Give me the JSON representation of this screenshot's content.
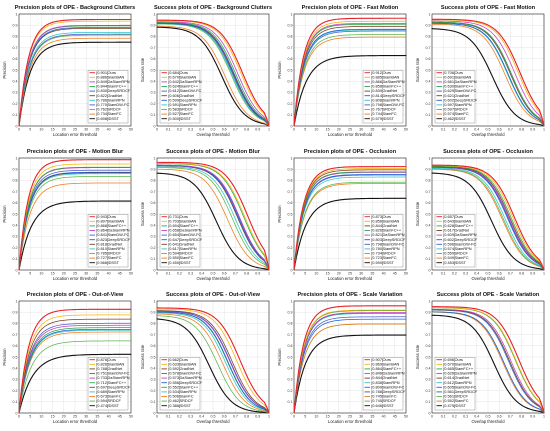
{
  "colors": {
    "Ours": "#e8202a",
    "SiamBAN": "#f7b500",
    "DaSiamRPN": "#c53fc1",
    "SiamFC++": "#28a84a",
    "DeepSRDCF": "#1e5fd6",
    "GradNet": "#7a3e1e",
    "SiamRPN": "#2ec4c9",
    "SRDCF": "#58b848",
    "SiamDW-FC": "#4a5bc8",
    "SiamFC": "#f07a1c",
    "fDSST": "#111111",
    "CFNet": "#8a8a8a"
  },
  "chart_data": [
    {
      "type": "line",
      "title": "Precision plots of OPE - Background Clutters",
      "xlabel": "Location error threshold",
      "ylabel": "Precision",
      "xlim": [
        0,
        50
      ],
      "ylim": [
        0,
        1
      ],
      "xticks": [
        "0",
        "5",
        "10",
        "15",
        "20",
        "25",
        "30",
        "35",
        "40",
        "45",
        "50"
      ],
      "yticks": [
        "0",
        "0.1",
        "0.2",
        "0.3",
        "0.4",
        "0.5",
        "0.6",
        "0.7",
        "0.8",
        "0.9",
        "1"
      ],
      "kind": "precision",
      "legend": "bottom-right",
      "series": [
        {
          "name": "Ours",
          "score": "[0.901]"
        },
        {
          "name": "SiamBAN",
          "score": "[0.886]"
        },
        {
          "name": "DaSiamRPN",
          "score": "[0.849]"
        },
        {
          "name": "SiamFC++",
          "score": "[0.844]"
        },
        {
          "name": "DeepSRDCF",
          "score": "[0.830]"
        },
        {
          "name": "GradNet",
          "score": "[0.822]"
        },
        {
          "name": "SiamRPN",
          "score": "[0.786]"
        },
        {
          "name": "SiamDW-FC",
          "score": "[0.770]"
        },
        {
          "name": "SRDCF",
          "score": "[0.762]"
        },
        {
          "name": "SiamFC",
          "score": "[0.734]"
        },
        {
          "name": "fDSST",
          "score": "[0.698]"
        }
      ]
    },
    {
      "type": "line",
      "title": "Success plots of OPE - Background Clutters",
      "xlabel": "Overlap threshold",
      "ylabel": "Success rate",
      "xlim": [
        0,
        1
      ],
      "ylim": [
        0,
        1
      ],
      "xticks": [
        "0",
        "0.1",
        "0.2",
        "0.3",
        "0.4",
        "0.5",
        "0.6",
        "0.7",
        "0.8",
        "0.9",
        "1"
      ],
      "yticks": [
        "0",
        "0.1",
        "0.2",
        "0.3",
        "0.4",
        "0.5",
        "0.6",
        "0.7",
        "0.8",
        "0.9",
        "1"
      ],
      "kind": "success",
      "legend": "bottom-left",
      "series": [
        {
          "name": "Ours",
          "score": "[0.684]"
        },
        {
          "name": "SiamBAN",
          "score": "[0.670]"
        },
        {
          "name": "DaSiamRPN",
          "score": "[0.642]"
        },
        {
          "name": "SiamFC++",
          "score": "[0.624]"
        },
        {
          "name": "SiamDW-FC",
          "score": "[0.612]"
        },
        {
          "name": "GradNet",
          "score": "[0.606]"
        },
        {
          "name": "DeepSRDCF",
          "score": "[0.599]"
        },
        {
          "name": "SiamRPN",
          "score": "[0.591]"
        },
        {
          "name": "SRDCF",
          "score": "[0.583]"
        },
        {
          "name": "SiamFC",
          "score": "[0.527]"
        },
        {
          "name": "fDSST",
          "score": "[0.500]"
        }
      ]
    },
    {
      "type": "line",
      "title": "Precision plots of OPE - Fast Motion",
      "xlabel": "Location error threshold",
      "ylabel": "Precision",
      "xlim": [
        0,
        50
      ],
      "ylim": [
        0,
        1
      ],
      "xticks": [
        "0",
        "5",
        "10",
        "15",
        "20",
        "25",
        "30",
        "35",
        "40",
        "45",
        "50"
      ],
      "yticks": [
        "0",
        "0.1",
        "0.2",
        "0.3",
        "0.4",
        "0.5",
        "0.6",
        "0.7",
        "0.8",
        "0.9",
        "1"
      ],
      "kind": "precision",
      "legend": "bottom-right",
      "series": [
        {
          "name": "Ours",
          "score": "[0.912]"
        },
        {
          "name": "SiamBAN",
          "score": "[0.885]"
        },
        {
          "name": "DaSiamRPN",
          "score": "[0.866]"
        },
        {
          "name": "SiamFC++",
          "score": "[0.858]"
        },
        {
          "name": "GradNet",
          "score": "[0.839]"
        },
        {
          "name": "DeepSRDCF",
          "score": "[0.814]"
        },
        {
          "name": "SiamRPN",
          "score": "[0.808]"
        },
        {
          "name": "SiamDW-FC",
          "score": "[0.798]"
        },
        {
          "name": "SRDCF",
          "score": "[0.767]"
        },
        {
          "name": "SiamFC",
          "score": "[0.744]"
        },
        {
          "name": "fDSST",
          "score": "[0.579]"
        }
      ]
    },
    {
      "type": "line",
      "title": "Success plots of OPE - Fast Motion",
      "xlabel": "Overlap threshold",
      "ylabel": "Success rate",
      "xlim": [
        0,
        1
      ],
      "ylim": [
        0,
        1
      ],
      "xticks": [
        "0",
        "0.1",
        "0.2",
        "0.3",
        "0.4",
        "0.5",
        "0.6",
        "0.7",
        "0.8",
        "0.9",
        "1"
      ],
      "yticks": [
        "0",
        "0.1",
        "0.2",
        "0.3",
        "0.4",
        "0.5",
        "0.6",
        "0.7",
        "0.8",
        "0.9",
        "1"
      ],
      "kind": "success",
      "legend": "bottom-left",
      "series": [
        {
          "name": "Ours",
          "score": "[0.706]"
        },
        {
          "name": "SiamBAN",
          "score": "[0.691]"
        },
        {
          "name": "DaSiamRPN",
          "score": "[0.661]"
        },
        {
          "name": "SiamFC++",
          "score": "[0.630]"
        },
        {
          "name": "SiamDW-FC",
          "score": "[0.629]"
        },
        {
          "name": "GradNet",
          "score": "[0.621]"
        },
        {
          "name": "DeepSRDCF",
          "score": "[0.602]"
        },
        {
          "name": "SiamRPN",
          "score": "[0.597]"
        },
        {
          "name": "SRDCF",
          "score": "[0.597]"
        },
        {
          "name": "SiamFC",
          "score": "[0.574]"
        },
        {
          "name": "fDSST",
          "score": "[0.462]"
        }
      ]
    },
    {
      "type": "line",
      "title": "Precision plots of OPE - Motion Blur",
      "xlabel": "Location error threshold",
      "ylabel": "Precision",
      "xlim": [
        0,
        50
      ],
      "ylim": [
        0,
        1
      ],
      "xticks": [
        "0",
        "5",
        "10",
        "15",
        "20",
        "25",
        "30",
        "35",
        "40",
        "45",
        "50"
      ],
      "yticks": [
        "0",
        "0.1",
        "0.2",
        "0.3",
        "0.4",
        "0.5",
        "0.6",
        "0.7",
        "0.8",
        "0.9",
        "1"
      ],
      "kind": "precision",
      "legend": "bottom-right",
      "series": [
        {
          "name": "Ours",
          "score": "[0.943]"
        },
        {
          "name": "SiamBAN",
          "score": "[0.897]"
        },
        {
          "name": "SiamFC++",
          "score": "[0.868]"
        },
        {
          "name": "DaSiamRPN",
          "score": "[0.864]"
        },
        {
          "name": "SiamDW-FC",
          "score": "[0.841]"
        },
        {
          "name": "DeepSRDCF",
          "score": "[0.823]"
        },
        {
          "name": "GradNet",
          "score": "[0.818]"
        },
        {
          "name": "SiamRPN",
          "score": "[0.810]"
        },
        {
          "name": "SRDCF",
          "score": "[0.785]"
        },
        {
          "name": "SiamFC",
          "score": "[0.727]"
        },
        {
          "name": "fDSST",
          "score": "[0.566]"
        }
      ]
    },
    {
      "type": "line",
      "title": "Success plots of OPE - Motion Blur",
      "xlabel": "Overlap threshold",
      "ylabel": "Success rate",
      "xlim": [
        0,
        1
      ],
      "ylim": [
        0,
        1
      ],
      "xticks": [
        "0",
        "0.1",
        "0.2",
        "0.3",
        "0.4",
        "0.5",
        "0.6",
        "0.7",
        "0.8",
        "0.9",
        "1"
      ],
      "yticks": [
        "0",
        "0.1",
        "0.2",
        "0.3",
        "0.4",
        "0.5",
        "0.6",
        "0.7",
        "0.8",
        "0.9",
        "1"
      ],
      "kind": "success",
      "legend": "bottom-left",
      "series": [
        {
          "name": "Ours",
          "score": "[0.731]"
        },
        {
          "name": "SiamBAN",
          "score": "[0.703]"
        },
        {
          "name": "SiamFC++",
          "score": "[0.694]"
        },
        {
          "name": "DaSiamRPN",
          "score": "[0.658]"
        },
        {
          "name": "SiamDW-FC",
          "score": "[0.654]"
        },
        {
          "name": "DeepSRDCF",
          "score": "[0.647]"
        },
        {
          "name": "GradNet",
          "score": "[0.641]"
        },
        {
          "name": "SiamRPN",
          "score": "[0.617]"
        },
        {
          "name": "SRDCF",
          "score": "[0.594]"
        },
        {
          "name": "SiamFC",
          "score": "[0.550]"
        },
        {
          "name": "fDSST",
          "score": "[0.450]"
        }
      ]
    },
    {
      "type": "line",
      "title": "Precision plots of OPE - Occlusion",
      "xlabel": "Location error threshold",
      "ylabel": "Precision",
      "xlim": [
        0,
        50
      ],
      "ylim": [
        0,
        1
      ],
      "xticks": [
        "0",
        "5",
        "10",
        "15",
        "20",
        "25",
        "30",
        "35",
        "40",
        "45",
        "50"
      ],
      "yticks": [
        "0",
        "0.1",
        "0.2",
        "0.3",
        "0.4",
        "0.5",
        "0.6",
        "0.7",
        "0.8",
        "0.9",
        "1"
      ],
      "kind": "precision",
      "legend": "bottom-right",
      "series": [
        {
          "name": "Ours",
          "score": "[0.873]"
        },
        {
          "name": "SiamBAN",
          "score": "[0.856]"
        },
        {
          "name": "GradNet",
          "score": "[0.844]"
        },
        {
          "name": "SiamFC++",
          "score": "[0.826]"
        },
        {
          "name": "DaSiamRPN",
          "score": "[0.821]"
        },
        {
          "name": "DeepSRDCF",
          "score": "[0.803]"
        },
        {
          "name": "SiamDW-FC",
          "score": "[0.798]"
        },
        {
          "name": "SiamRPN",
          "score": "[0.780]"
        },
        {
          "name": "SRDCF",
          "score": "[0.734]"
        },
        {
          "name": "SiamFC",
          "score": "[0.723]"
        },
        {
          "name": "fDSST",
          "score": "[0.590]"
        }
      ]
    },
    {
      "type": "line",
      "title": "Success plots of OPE - Occlusion",
      "xlabel": "Overlap threshold",
      "ylabel": "Success rate",
      "xlim": [
        0,
        1
      ],
      "ylim": [
        0,
        1
      ],
      "xticks": [
        "0",
        "0.1",
        "0.2",
        "0.3",
        "0.4",
        "0.5",
        "0.6",
        "0.7",
        "0.8",
        "0.9",
        "1"
      ],
      "yticks": [
        "0",
        "0.1",
        "0.2",
        "0.3",
        "0.4",
        "0.5",
        "0.6",
        "0.7",
        "0.8",
        "0.9",
        "1"
      ],
      "kind": "success",
      "legend": "bottom-left",
      "series": [
        {
          "name": "Ours",
          "score": "[0.657]"
        },
        {
          "name": "SiamBAN",
          "score": "[0.643]"
        },
        {
          "name": "SiamFC++",
          "score": "[0.628]"
        },
        {
          "name": "GradNet",
          "score": "[0.617]"
        },
        {
          "name": "DaSiamRPN",
          "score": "[0.609]"
        },
        {
          "name": "DeepSRDCF",
          "score": "[0.602]"
        },
        {
          "name": "SiamDW-FC",
          "score": "[0.596]"
        },
        {
          "name": "SiamRPN",
          "score": "[0.574]"
        },
        {
          "name": "SRDCF",
          "score": "[0.559]"
        },
        {
          "name": "SiamFC",
          "score": "[0.549]"
        },
        {
          "name": "fDSST",
          "score": "[0.453]"
        }
      ]
    },
    {
      "type": "line",
      "title": "Precision plots of OPE - Out-of-View",
      "xlabel": "Location error threshold",
      "ylabel": "Precision",
      "xlim": [
        0,
        50
      ],
      "ylim": [
        0,
        1
      ],
      "xticks": [
        "0",
        "5",
        "10",
        "15",
        "20",
        "25",
        "30",
        "35",
        "40",
        "45",
        "50"
      ],
      "yticks": [
        "0",
        "0.1",
        "0.2",
        "0.3",
        "0.4",
        "0.5",
        "0.6",
        "0.7",
        "0.8",
        "0.9",
        "1"
      ],
      "kind": "precision",
      "legend": "bottom-right",
      "series": [
        {
          "name": "Ours",
          "score": "[0.876]"
        },
        {
          "name": "SiamBAN",
          "score": "[0.826]"
        },
        {
          "name": "GradNet",
          "score": "[0.788]"
        },
        {
          "name": "SiamDW-FC",
          "score": "[0.751]"
        },
        {
          "name": "DaSiamRPN",
          "score": "[0.733]"
        },
        {
          "name": "SiamFC++",
          "score": "[0.712]"
        },
        {
          "name": "DeepSRDCF",
          "score": "[0.697]"
        },
        {
          "name": "SiamRPN",
          "score": "[0.689]"
        },
        {
          "name": "SiamFC",
          "score": "[0.673]"
        },
        {
          "name": "SRDCF",
          "score": "[0.594]"
        },
        {
          "name": "fDSST",
          "score": "[0.474]"
        }
      ]
    },
    {
      "type": "line",
      "title": "Success plots of OPE - Out-of-View",
      "xlabel": "Overlap threshold",
      "ylabel": "Success rate",
      "xlim": [
        0,
        1
      ],
      "ylim": [
        0,
        1
      ],
      "xticks": [
        "0",
        "0.1",
        "0.2",
        "0.3",
        "0.4",
        "0.5",
        "0.6",
        "0.7",
        "0.8",
        "0.9",
        "1"
      ],
      "yticks": [
        "0",
        "0.1",
        "0.2",
        "0.3",
        "0.4",
        "0.5",
        "0.6",
        "0.7",
        "0.8",
        "0.9",
        "1"
      ],
      "kind": "success",
      "legend": "bottom-left",
      "series": [
        {
          "name": "Ours",
          "score": "[0.662]"
        },
        {
          "name": "SiamBAN",
          "score": "[0.633]"
        },
        {
          "name": "GradNet",
          "score": "[0.592]"
        },
        {
          "name": "SiamDW-FC",
          "score": "[0.578]"
        },
        {
          "name": "DaSiamRPN",
          "score": "[0.573]"
        },
        {
          "name": "DeepSRDCF",
          "score": "[0.556]"
        },
        {
          "name": "SiamFC++",
          "score": "[0.552]"
        },
        {
          "name": "SiamRPN",
          "score": "[0.534]"
        },
        {
          "name": "SiamFC",
          "score": "[0.506]"
        },
        {
          "name": "SRDCF",
          "score": "[0.462]"
        },
        {
          "name": "fDSST",
          "score": "[0.386]"
        }
      ]
    },
    {
      "type": "line",
      "title": "Precision plots of OPE - Scale Variation",
      "xlabel": "Location error threshold",
      "ylabel": "Precision",
      "xlim": [
        0,
        50
      ],
      "ylim": [
        0,
        1
      ],
      "xticks": [
        "0",
        "5",
        "10",
        "15",
        "20",
        "25",
        "30",
        "35",
        "40",
        "45",
        "50"
      ],
      "yticks": [
        "0",
        "0.1",
        "0.2",
        "0.3",
        "0.4",
        "0.5",
        "0.6",
        "0.7",
        "0.8",
        "0.9",
        "1"
      ],
      "kind": "precision",
      "legend": "bottom-right",
      "series": [
        {
          "name": "Ours",
          "score": "[0.907]"
        },
        {
          "name": "SiamBAN",
          "score": "[0.869]"
        },
        {
          "name": "SiamFC++",
          "score": "[0.864]"
        },
        {
          "name": "DaSiamRPN",
          "score": "[0.846]"
        },
        {
          "name": "GradNet",
          "score": "[0.844]"
        },
        {
          "name": "SiamRPN",
          "score": "[0.838]"
        },
        {
          "name": "SiamDW-FC",
          "score": "[0.809]"
        },
        {
          "name": "DeepSRDCF",
          "score": "[0.788]"
        },
        {
          "name": "SiamFC",
          "score": "[0.745]"
        },
        {
          "name": "SRDCF",
          "score": "[0.745]"
        },
        {
          "name": "fDSST",
          "score": "[0.646]"
        }
      ]
    },
    {
      "type": "line",
      "title": "Success plots of OPE - Scale Variation",
      "xlabel": "Overlap threshold",
      "ylabel": "Success rate",
      "xlim": [
        0,
        1
      ],
      "ylim": [
        0,
        1
      ],
      "xticks": [
        "0",
        "0.1",
        "0.2",
        "0.3",
        "0.4",
        "0.5",
        "0.6",
        "0.7",
        "0.8",
        "0.9",
        "1"
      ],
      "yticks": [
        "0",
        "0.1",
        "0.2",
        "0.3",
        "0.4",
        "0.5",
        "0.6",
        "0.7",
        "0.8",
        "0.9",
        "1"
      ],
      "kind": "success",
      "legend": "bottom-left",
      "series": [
        {
          "name": "Ours",
          "score": "[0.696]"
        },
        {
          "name": "SiamBAN",
          "score": "[0.670]"
        },
        {
          "name": "SiamFC++",
          "score": "[0.665]"
        },
        {
          "name": "DaSiamRPN",
          "score": "[0.626]"
        },
        {
          "name": "GradNet",
          "score": "[0.614]"
        },
        {
          "name": "SiamRPN",
          "score": "[0.612]"
        },
        {
          "name": "SiamDW-FC",
          "score": "[0.605]"
        },
        {
          "name": "DeepSRDCF",
          "score": "[0.561]"
        },
        {
          "name": "SRDCF",
          "score": "[0.561]"
        },
        {
          "name": "SiamFC",
          "score": "[0.552]"
        },
        {
          "name": "fDSST",
          "score": "[0.475]"
        }
      ]
    }
  ]
}
